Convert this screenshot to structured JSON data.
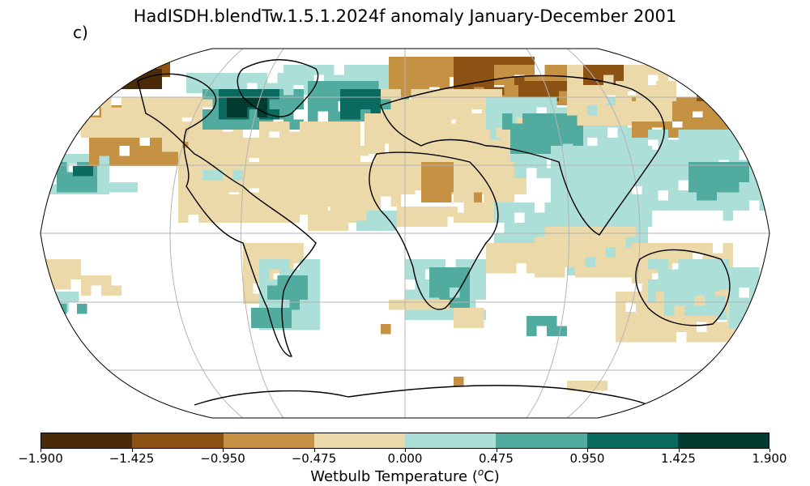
{
  "title": "HadISDH.blendTw.1.5.1.2024f anomaly January-December 2001",
  "panel_label": "c)",
  "colorbar": {
    "label": "Wetbulb Temperature (",
    "label_sup": "o",
    "label_end": "C)",
    "ticks": [
      "−1.900",
      "−1.425",
      "−0.950",
      "−0.475",
      "0.000",
      "0.475",
      "0.950",
      "1.425",
      "1.900"
    ],
    "colors": [
      "#4a2a08",
      "#8c5214",
      "#c59142",
      "#ebd9a9",
      "#abdfd8",
      "#52ab9f",
      "#0a6a5f",
      "#023b30"
    ]
  },
  "map": {
    "projection": "Robinson",
    "graticule": true,
    "land_color": "#ffffff",
    "coastline_color": "#000000"
  },
  "chart_data": {
    "type": "heatmap",
    "title": "HadISDH.blendTw.1.5.1.2024f anomaly January-December 2001",
    "variable": "Wetbulb Temperature anomaly",
    "units": "°C",
    "levels": [
      -1.9,
      -1.425,
      -0.95,
      -0.475,
      0.0,
      0.475,
      0.95,
      1.425,
      1.9
    ],
    "regional_anomalies": [
      {
        "region": "Alaska / NW Canada",
        "class": "-0.95 to -0.475"
      },
      {
        "region": "Greenland / NE Canada",
        "class": "0.95 to 1.9"
      },
      {
        "region": "USA",
        "class": "-0.475 to 0"
      },
      {
        "region": "Europe",
        "class": "-0.475 to 0"
      },
      {
        "region": "Northern Siberia",
        "class": "-1.425 to -0.475"
      },
      {
        "region": "Central Asia",
        "class": "0 to 0.475"
      },
      {
        "region": "Eastern Siberia",
        "class": "-0.95 to -0.475"
      },
      {
        "region": "India / East Asia",
        "class": "0 to 0.475"
      },
      {
        "region": "Southern Africa",
        "class": "0.475 to 0.95"
      },
      {
        "region": "Southern South America",
        "class": "0 to 0.95"
      },
      {
        "region": "Australia",
        "class": "-0.475 to 0.95"
      },
      {
        "region": "Antarctica coast",
        "class": "-0.95 to 0"
      }
    ]
  }
}
